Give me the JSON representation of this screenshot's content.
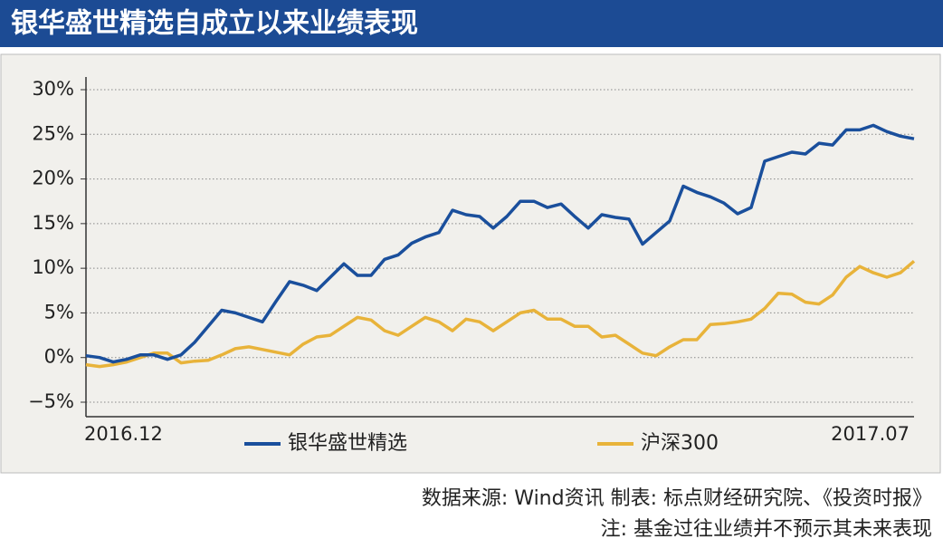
{
  "chart_data": {
    "type": "line",
    "title": "银华盛世精选自成立以来业绩表现",
    "source": "数据来源: Wind资讯  制表: 标点财经研究院、《投资时报》",
    "note": "注: 基金过往业绩并不预示其未来表现",
    "categories": [
      "2016.12",
      null,
      null,
      null,
      null,
      null,
      null,
      null,
      null,
      null,
      null,
      null,
      null,
      null,
      null,
      null,
      null,
      null,
      null,
      null,
      null,
      null,
      null,
      null,
      null,
      null,
      null,
      null,
      null,
      null,
      null,
      null,
      null,
      null,
      null,
      null,
      null,
      null,
      null,
      null,
      null,
      null,
      null,
      null,
      null,
      null,
      null,
      null,
      null,
      null,
      null,
      null,
      null,
      null,
      null,
      null,
      null,
      null,
      null,
      null,
      null,
      "2017.07"
    ],
    "series": [
      {
        "name": "银华盛世精选",
        "color": "#1a4f9c",
        "values": [
          0.2,
          0,
          -0.5,
          -0.2,
          0.3,
          0.3,
          -0.2,
          0.3,
          1.7,
          3.5,
          5.3,
          5,
          4.5,
          4,
          6.3,
          8.5,
          8.1,
          7.5,
          9,
          10.5,
          9.2,
          9.2,
          11,
          11.5,
          12.8,
          13.5,
          14,
          16.5,
          16,
          15.8,
          14.5,
          15.8,
          17.5,
          17.5,
          16.8,
          17.2,
          15.8,
          14.5,
          16,
          15.7,
          15.5,
          12.7,
          14,
          15.3,
          19.2,
          18.5,
          18,
          17.3,
          16.1,
          16.8,
          22,
          22.5,
          23,
          22.8,
          24,
          23.8,
          25.5,
          25.5,
          26,
          25.3,
          24.8,
          24.5
        ]
      },
      {
        "name": "沪深300",
        "color": "#e8b33a",
        "values": [
          -0.8,
          -1,
          -0.8,
          -0.5,
          0,
          0.5,
          0.5,
          -0.6,
          -0.4,
          -0.3,
          0.3,
          1,
          1.2,
          0.9,
          0.6,
          0.3,
          1.5,
          2.3,
          2.5,
          3.5,
          4.5,
          4.2,
          3,
          2.5,
          3.5,
          4.5,
          4,
          3,
          4.3,
          4,
          3,
          4,
          5,
          5.3,
          4.3,
          4.3,
          3.5,
          3.5,
          2.3,
          2.5,
          1.5,
          0.5,
          0.2,
          1.2,
          2,
          2,
          3.7,
          3.8,
          4,
          4.3,
          5.5,
          7.2,
          7.1,
          6.2,
          6,
          7,
          9,
          10.2,
          9.5,
          9,
          9.5,
          10.8
        ]
      }
    ],
    "ylim": [
      -5,
      30
    ],
    "yticks": [
      {
        "value": -5,
        "label": "−5%"
      },
      {
        "value": 0,
        "label": "0%"
      },
      {
        "value": 5,
        "label": "5%"
      },
      {
        "value": 10,
        "label": "10%"
      },
      {
        "value": 15,
        "label": "15%"
      },
      {
        "value": 20,
        "label": "20%"
      },
      {
        "value": 25,
        "label": "25%"
      },
      {
        "value": 30,
        "label": "30%"
      }
    ],
    "grid": true
  }
}
